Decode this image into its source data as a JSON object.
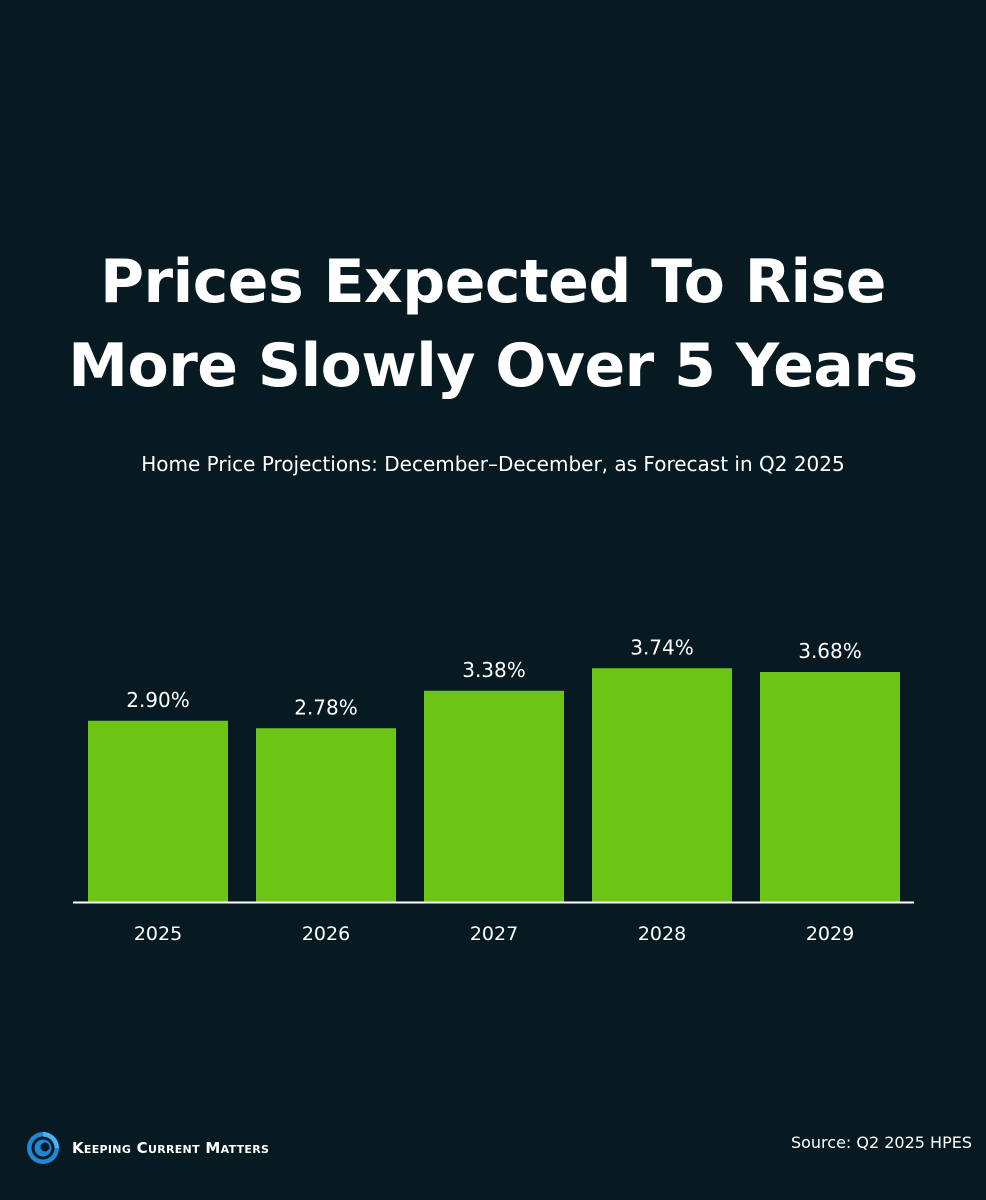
{
  "title": {
    "line1": "Prices Expected To Rise",
    "line2": "More Slowly Over 5 Years"
  },
  "subtitle": "Home Price Projections: December–December, as Forecast in Q2 2025",
  "chart_data": {
    "type": "bar",
    "title": "Prices Expected To Rise More Slowly Over 5 Years",
    "subtitle": "Home Price Projections: December–December, as Forecast in Q2 2025",
    "categories": [
      "2025",
      "2026",
      "2027",
      "2028",
      "2029"
    ],
    "values": [
      2.9,
      2.78,
      3.38,
      3.74,
      3.68
    ],
    "value_labels": [
      "2.90%",
      "2.78%",
      "3.38%",
      "3.74%",
      "3.68%"
    ],
    "xlabel": "",
    "ylabel": "",
    "ylim": [
      0,
      4
    ],
    "grid": false,
    "legend": "none",
    "bar_color": "#6cc514",
    "background_color": "#071a22"
  },
  "footer": {
    "brand": "Keeping Current Matters",
    "brand_icon": "kcm-swirl-logo-icon",
    "source": "Source: Q2 2025 HPES"
  }
}
